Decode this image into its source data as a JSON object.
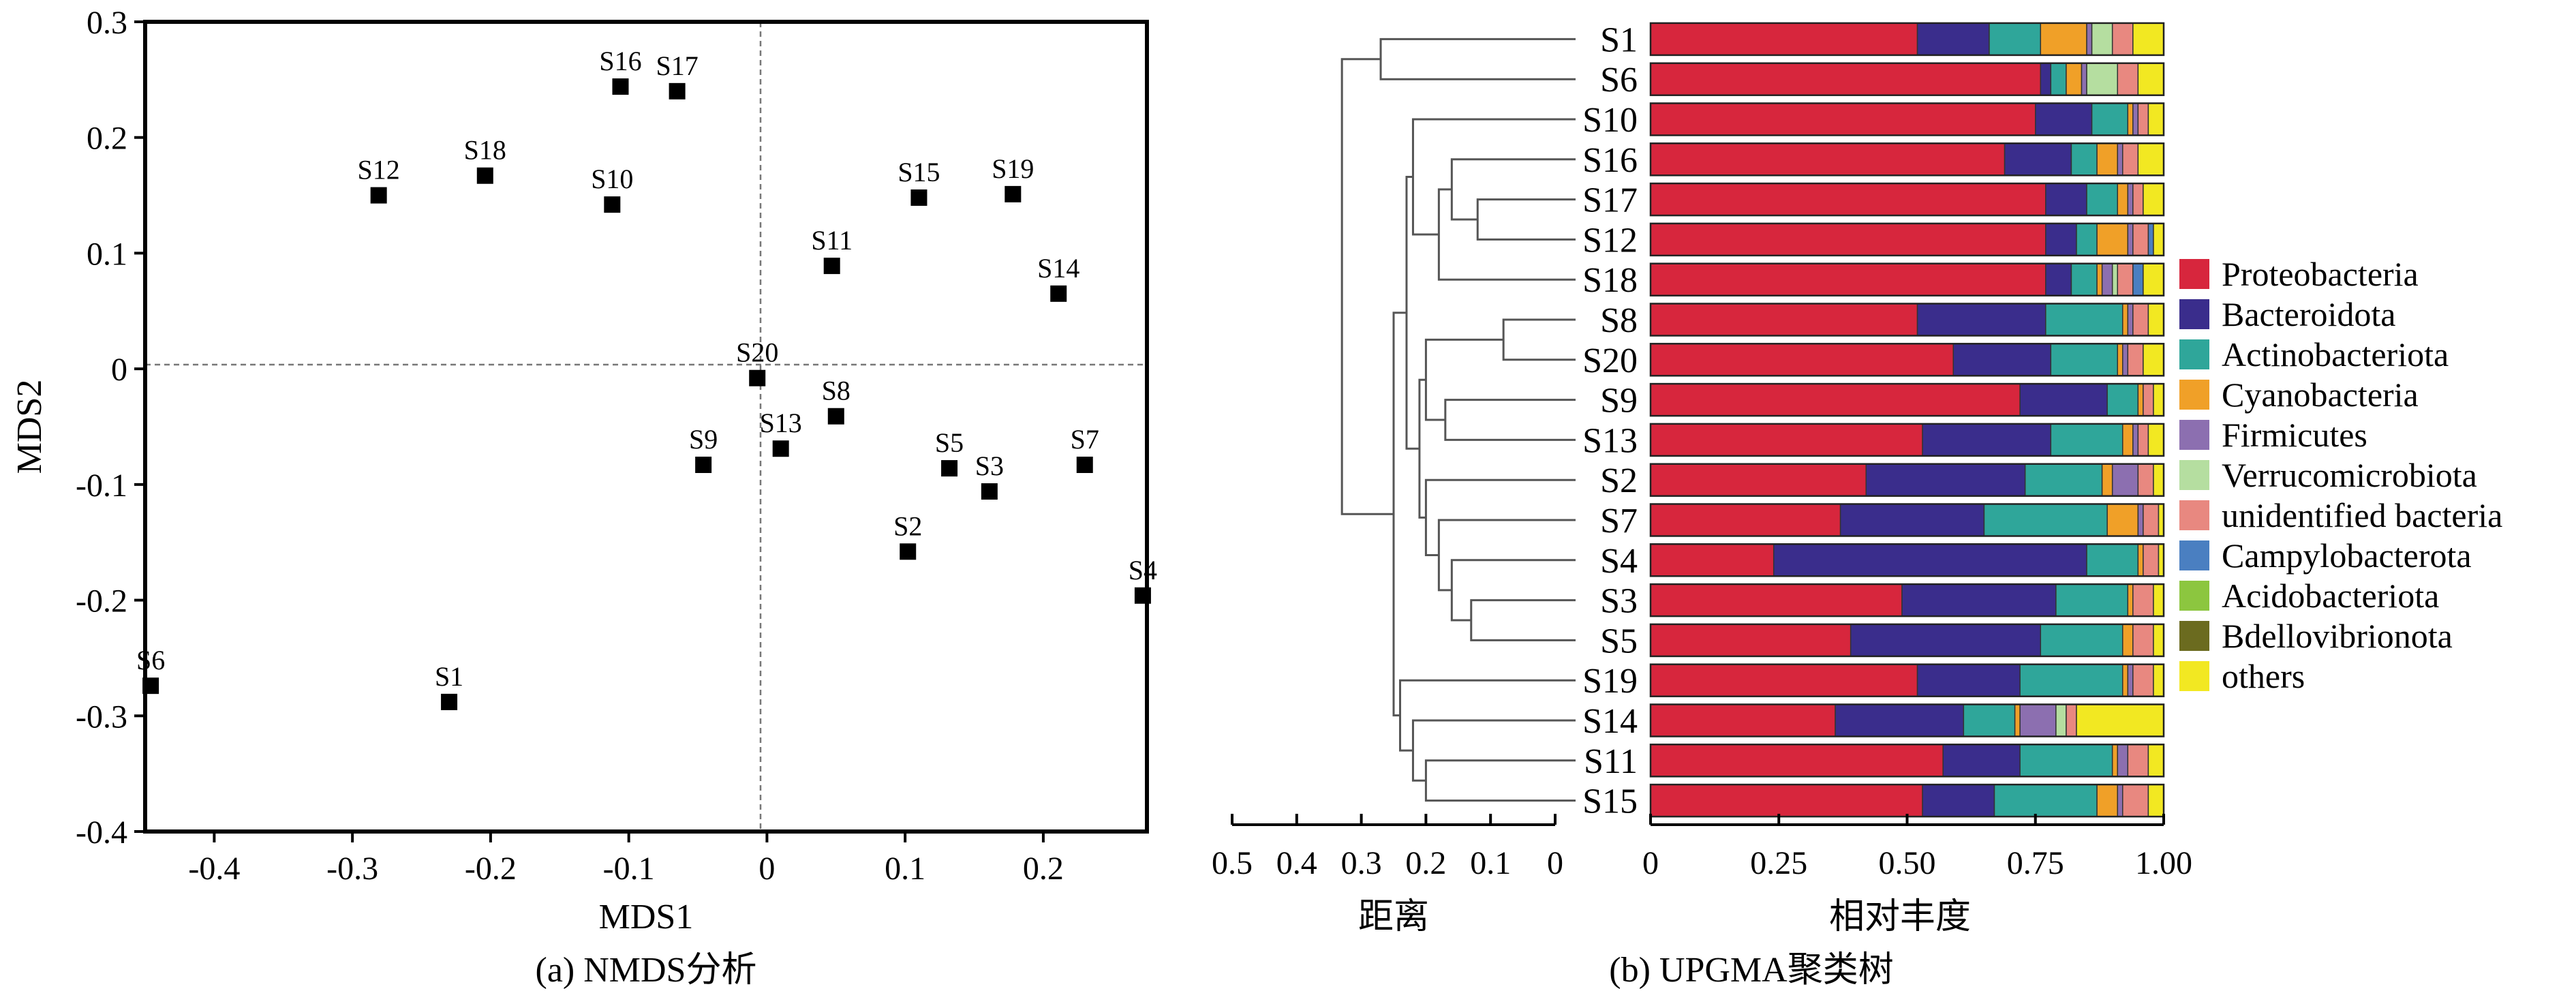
{
  "chart_data": [
    {
      "type": "scatter",
      "caption": "(a) NMDS分析",
      "xlabel": "MDS1",
      "ylabel": "MDS2",
      "xlim": [
        -0.45,
        0.275
      ],
      "ylim": [
        -0.4,
        0.3
      ],
      "xticks": [
        "-0.4",
        "-0.3",
        "-0.2",
        "-0.1",
        "0",
        "0.1",
        "0.2"
      ],
      "xtick_values": [
        -0.4,
        -0.3,
        -0.2,
        -0.1,
        0,
        0.1,
        0.2
      ],
      "yticks": [
        "0.3",
        "0.2",
        "0.1",
        "0",
        "-0.1",
        "-0.2",
        "-0.3",
        "-0.4"
      ],
      "ytick_values": [
        0.3,
        0.2,
        0.1,
        0,
        -0.1,
        -0.2,
        -0.3,
        -0.4
      ],
      "reference_lines": {
        "x": 0,
        "y": 0,
        "style": "dashed"
      },
      "points": [
        {
          "label": "S1",
          "x": -0.23,
          "y": -0.288
        },
        {
          "label": "S2",
          "x": 0.102,
          "y": -0.158
        },
        {
          "label": "S3",
          "x": 0.161,
          "y": -0.106
        },
        {
          "label": "S4",
          "x": 0.272,
          "y": -0.196
        },
        {
          "label": "S5",
          "x": 0.132,
          "y": -0.086
        },
        {
          "label": "S6",
          "x": -0.446,
          "y": -0.274
        },
        {
          "label": "S7",
          "x": 0.23,
          "y": -0.083
        },
        {
          "label": "S8",
          "x": 0.05,
          "y": -0.041
        },
        {
          "label": "S9",
          "x": -0.046,
          "y": -0.083
        },
        {
          "label": "S10",
          "x": -0.112,
          "y": 0.142
        },
        {
          "label": "S11",
          "x": 0.047,
          "y": 0.089
        },
        {
          "label": "S12",
          "x": -0.281,
          "y": 0.15
        },
        {
          "label": "S13",
          "x": 0.01,
          "y": -0.069
        },
        {
          "label": "S14",
          "x": 0.211,
          "y": 0.065
        },
        {
          "label": "S15",
          "x": 0.11,
          "y": 0.148
        },
        {
          "label": "S16",
          "x": -0.106,
          "y": 0.244
        },
        {
          "label": "S17",
          "x": -0.065,
          "y": 0.24
        },
        {
          "label": "S18",
          "x": -0.204,
          "y": 0.167
        },
        {
          "label": "S19",
          "x": 0.178,
          "y": 0.151
        },
        {
          "label": "S20",
          "x": -0.007,
          "y": -0.008
        }
      ]
    },
    {
      "type": "bar",
      "subtype": "stacked-horizontal-with-dendrogram",
      "caption": "(b) UPGMA聚类树",
      "dendrogram_xlabel": "距离",
      "dendrogram_xlim": [
        0.5,
        0
      ],
      "dendrogram_ticks": [
        "0.5",
        "0.4",
        "0.3",
        "0.2",
        "0.1",
        "0"
      ],
      "dendrogram_tick_values": [
        0.5,
        0.4,
        0.3,
        0.2,
        0.1,
        0
      ],
      "bar_xlabel": "相对丰度",
      "bar_xlim": [
        0,
        1
      ],
      "bar_ticks": [
        "0",
        "0.25",
        "0.50",
        "0.75",
        "1.00"
      ],
      "bar_tick_values": [
        0,
        0.25,
        0.5,
        0.75,
        1.0
      ],
      "legend_position": "right",
      "categories": [
        "S1",
        "S6",
        "S10",
        "S16",
        "S17",
        "S12",
        "S18",
        "S8",
        "S20",
        "S9",
        "S13",
        "S2",
        "S7",
        "S4",
        "S3",
        "S5",
        "S19",
        "S14",
        "S11",
        "S15"
      ],
      "series": [
        {
          "name": "Proteobacteria",
          "color": "#d7263d",
          "values": [
            0.52,
            0.76,
            0.75,
            0.69,
            0.77,
            0.77,
            0.77,
            0.52,
            0.59,
            0.72,
            0.53,
            0.42,
            0.37,
            0.24,
            0.49,
            0.39,
            0.52,
            0.36,
            0.57,
            0.53
          ]
        },
        {
          "name": "Bacteroidota",
          "color": "#3a2d8c",
          "values": [
            0.14,
            0.02,
            0.11,
            0.13,
            0.08,
            0.06,
            0.05,
            0.25,
            0.19,
            0.17,
            0.25,
            0.31,
            0.28,
            0.61,
            0.3,
            0.37,
            0.2,
            0.25,
            0.15,
            0.14
          ]
        },
        {
          "name": "Actinobacteriota",
          "color": "#2fa69a",
          "values": [
            0.1,
            0.03,
            0.07,
            0.05,
            0.06,
            0.04,
            0.05,
            0.15,
            0.13,
            0.06,
            0.14,
            0.15,
            0.24,
            0.1,
            0.14,
            0.16,
            0.2,
            0.1,
            0.18,
            0.2
          ]
        },
        {
          "name": "Cyanobacteria",
          "color": "#f0a028",
          "values": [
            0.09,
            0.03,
            0.01,
            0.04,
            0.02,
            0.06,
            0.01,
            0.01,
            0.01,
            0.01,
            0.02,
            0.02,
            0.06,
            0.01,
            0.01,
            0.02,
            0.01,
            0.01,
            0.01,
            0.04
          ]
        },
        {
          "name": "Firmicutes",
          "color": "#8c6fb0",
          "values": [
            0.01,
            0.01,
            0.01,
            0.01,
            0.01,
            0.01,
            0.02,
            0.01,
            0.01,
            0.0,
            0.01,
            0.05,
            0.01,
            0.0,
            0.0,
            0.0,
            0.01,
            0.07,
            0.02,
            0.01
          ]
        },
        {
          "name": "Verrucomicrobiota",
          "color": "#b5dea0",
          "values": [
            0.04,
            0.06,
            0.0,
            0.0,
            0.0,
            0.0,
            0.01,
            0.0,
            0.0,
            0.0,
            0.0,
            0.0,
            0.0,
            0.0,
            0.0,
            0.0,
            0.0,
            0.02,
            0.0,
            0.0
          ]
        },
        {
          "name": "unidentified bacteria",
          "color": "#e88880",
          "values": [
            0.04,
            0.04,
            0.02,
            0.03,
            0.02,
            0.03,
            0.03,
            0.03,
            0.03,
            0.02,
            0.02,
            0.03,
            0.03,
            0.03,
            0.04,
            0.04,
            0.04,
            0.02,
            0.04,
            0.05
          ]
        },
        {
          "name": "Campylobacterota",
          "color": "#4a7fc1",
          "values": [
            0.0,
            0.0,
            0.0,
            0.0,
            0.0,
            0.01,
            0.02,
            0.0,
            0.0,
            0.0,
            0.0,
            0.0,
            0.0,
            0.0,
            0.0,
            0.0,
            0.0,
            0.0,
            0.0,
            0.0
          ]
        },
        {
          "name": "Acidobacteriota",
          "color": "#8cc63f",
          "values": [
            0.0,
            0.0,
            0.0,
            0.0,
            0.0,
            0.0,
            0.0,
            0.0,
            0.0,
            0.0,
            0.0,
            0.0,
            0.0,
            0.0,
            0.0,
            0.0,
            0.0,
            0.0,
            0.0,
            0.0
          ]
        },
        {
          "name": "Bdellovibrionota",
          "color": "#6b6b1f",
          "values": [
            0.0,
            0.0,
            0.0,
            0.0,
            0.0,
            0.0,
            0.0,
            0.0,
            0.0,
            0.0,
            0.0,
            0.0,
            0.0,
            0.0,
            0.0,
            0.0,
            0.0,
            0.0,
            0.0,
            0.0
          ]
        },
        {
          "name": "others",
          "color": "#f2e822",
          "values": [
            0.06,
            0.05,
            0.03,
            0.05,
            0.04,
            0.02,
            0.04,
            0.03,
            0.04,
            0.02,
            0.03,
            0.02,
            0.01,
            0.01,
            0.02,
            0.02,
            0.02,
            0.17,
            0.03,
            0.03
          ]
        }
      ],
      "dendrogram": {
        "merges": [
          {
            "a": "S1",
            "b": "S6",
            "height": 0.27
          },
          {
            "a": "S17",
            "b": "S12",
            "height": 0.12
          },
          {
            "a": "S16",
            "b": "m1",
            "height": 0.16
          },
          {
            "a": "S18",
            "b": "m2",
            "height": 0.18
          },
          {
            "a": "S10",
            "b": "m3",
            "height": 0.22
          },
          {
            "a": "S8",
            "b": "S20",
            "height": 0.08
          },
          {
            "a": "S9",
            "b": "S13",
            "height": 0.17
          },
          {
            "a": "m5",
            "b": "m6",
            "height": 0.2
          },
          {
            "a": "S3",
            "b": "S5",
            "height": 0.13
          },
          {
            "a": "S4",
            "b": "m8",
            "height": 0.16
          },
          {
            "a": "S7",
            "b": "m9",
            "height": 0.18
          },
          {
            "a": "S2",
            "b": "m10",
            "height": 0.2
          },
          {
            "a": "m7",
            "b": "m11",
            "height": 0.21
          },
          {
            "a": "m4",
            "b": "m12",
            "height": 0.23
          },
          {
            "a": "S11",
            "b": "S15",
            "height": 0.2
          },
          {
            "a": "S14",
            "b": "m14",
            "height": 0.22
          },
          {
            "a": "S19",
            "b": "m15",
            "height": 0.24
          },
          {
            "a": "m13",
            "b": "m16",
            "height": 0.25
          },
          {
            "a": "m0",
            "b": "m17",
            "height": 0.33
          }
        ]
      }
    }
  ]
}
